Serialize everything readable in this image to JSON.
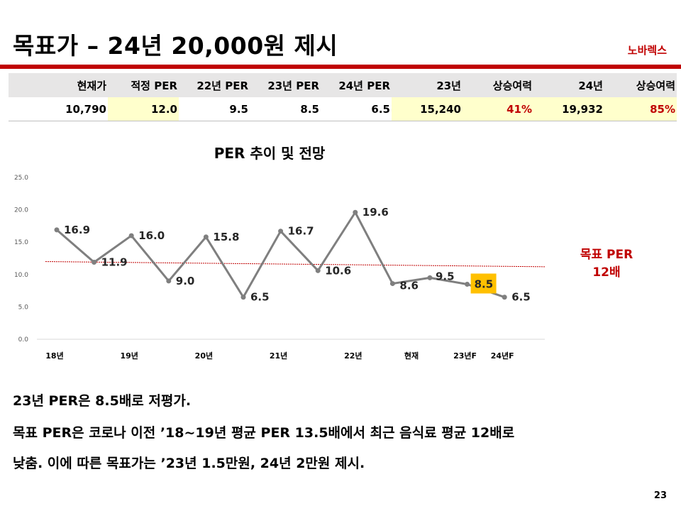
{
  "title": "목표가 – 24년 20,000원 제시",
  "company": "노바렉스",
  "table": {
    "headers": [
      "현재가",
      "적정 PER",
      "22년 PER",
      "23년 PER",
      "24년 PER",
      "23년",
      "상승여력",
      "24년",
      "상승여력"
    ],
    "values": [
      "10,790",
      "12.0",
      "9.5",
      "8.5",
      "6.5",
      "15,240",
      "41%",
      "19,932",
      "85%"
    ]
  },
  "chart_title": "PER 추이 및 전망",
  "target_label": [
    "목표 PER",
    "12배"
  ],
  "chart_data": {
    "type": "line",
    "title": "PER 추이 및 전망",
    "ylim": [
      0,
      25
    ],
    "yticks": [
      "0.0",
      "5.0",
      "10.0",
      "15.0",
      "20.0",
      "25.0"
    ],
    "x_tick_labels": [
      "18년",
      "19년",
      "20년",
      "21년",
      "22년",
      "현재",
      "23년F",
      "24년F"
    ],
    "values": [
      16.9,
      11.9,
      16.0,
      9.0,
      15.8,
      6.5,
      16.7,
      10.6,
      19.6,
      8.6,
      9.5,
      8.5,
      6.5
    ],
    "value_labels": [
      "16.9",
      "11.9",
      "16.0",
      "9.0",
      "15.8",
      "6.5",
      "16.7",
      "10.6",
      "19.6",
      "8.6",
      "9.5",
      "8.5",
      "6.5"
    ],
    "highlight_index": 11,
    "trend_line": [
      12.0,
      11.2
    ],
    "colors": {
      "line": "#7f7f7f",
      "trend": "#c00000",
      "highlight": "#ffc000"
    },
    "grid": false
  },
  "body_text": [
    "23년 PER은 8.5배로 저평가.",
    "목표 PER은 코로나 이전 ’18~19년 평균 PER 13.5배에서 최근 음식료 평균 12배로",
    "낮춤. 이에 따른 목표가는 ’23년 1.5만원, 24년 2만원 제시."
  ],
  "page_number": "23"
}
